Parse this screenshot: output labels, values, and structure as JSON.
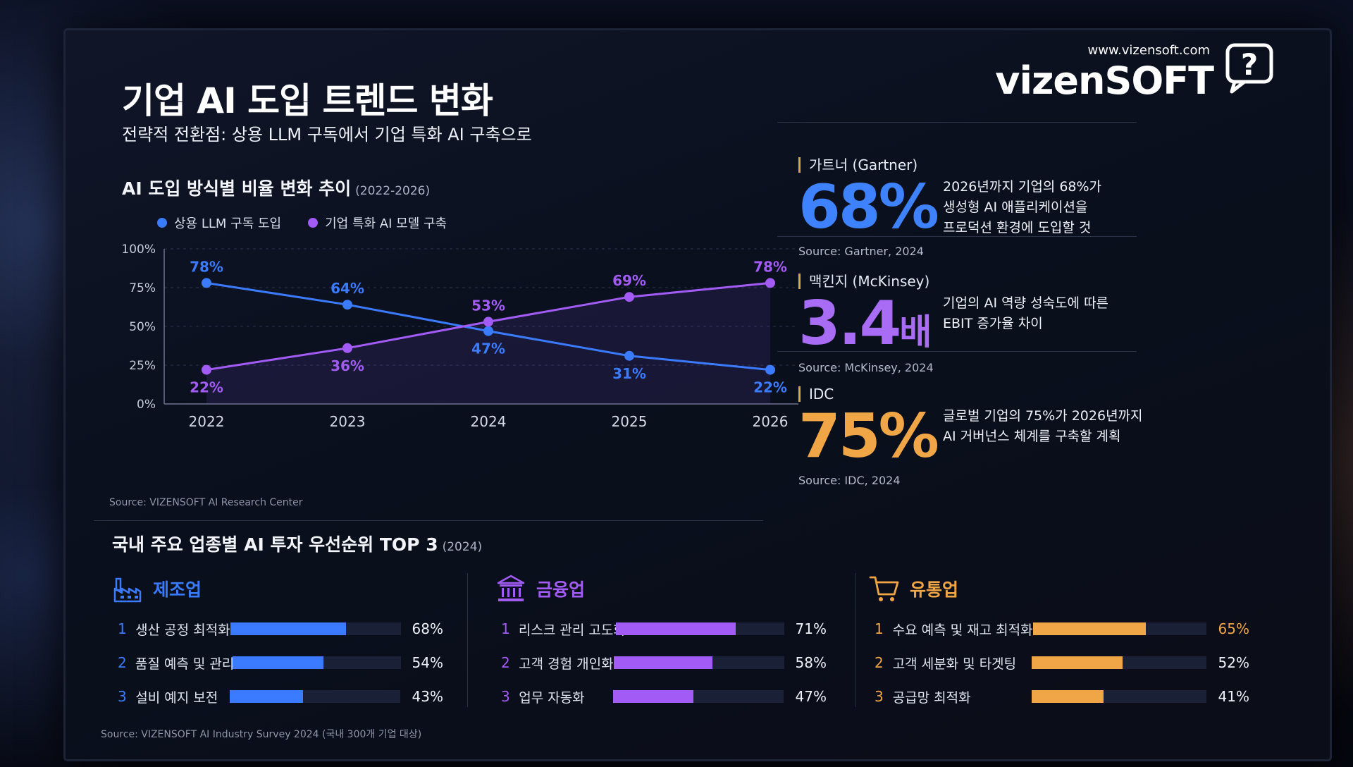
{
  "header": {
    "title": "기업 AI 도입 트렌드 변화",
    "subtitle": "전략적 전환점: 상용 LLM 구독에서 기업 특화 AI 구축으로"
  },
  "brand": {
    "url": "www.vizensoft.com",
    "name": "vizenSOFT"
  },
  "chart_section": {
    "title": "AI 도입 방식별 비율 변화 추이",
    "range": "(2022-2026)",
    "source": "Source: VIZENSOFT AI Research Center"
  },
  "chart_data": {
    "type": "line",
    "x": [
      "2022",
      "2023",
      "2024",
      "2025",
      "2026"
    ],
    "series": [
      {
        "name": "상용 LLM 구독 도입",
        "values": [
          78,
          64,
          47,
          31,
          22
        ],
        "color": "#3b7bff"
      },
      {
        "name": "기업 특화 AI 모델 구축",
        "values": [
          22,
          36,
          53,
          69,
          78
        ],
        "color": "#a25cf5"
      }
    ],
    "data_labels": [
      [
        "78%",
        "64%",
        "47%",
        "31%",
        "22%"
      ],
      [
        "22%",
        "36%",
        "53%",
        "69%",
        "78%"
      ]
    ],
    "y_ticks": [
      "0%",
      "25%",
      "50%",
      "75%",
      "100%"
    ],
    "ylim": [
      0,
      100
    ],
    "grid": true,
    "legend_position": "top-left"
  },
  "stats": [
    {
      "label": "가트너 (Gartner)",
      "value": "68%",
      "unit": "",
      "desc_lines": [
        "2026년까지 기업의 68%가",
        "생성형 AI 애플리케이션을",
        "프로덕션 환경에 도입할 것"
      ],
      "source": "Source: Gartner, 2024",
      "color": "#3f82ff"
    },
    {
      "label": "맥킨지 (McKinsey)",
      "value": "3.4",
      "unit": "배",
      "desc_lines": [
        "기업의 AI 역량 성숙도에 따른",
        "EBIT 증가율 차이"
      ],
      "source": "Source: McKinsey, 2024",
      "color": "#a86cf5"
    },
    {
      "label": "IDC",
      "value": "75%",
      "unit": "",
      "desc_lines": [
        "글로벌 기업의 75%가 2026년까지",
        "AI 거버넌스 체계를 구축할 계획"
      ],
      "source": "Source: IDC, 2024",
      "color": "#f0a646"
    }
  ],
  "industries_section": {
    "title": "국내 주요 업종별 AI 투자 우선순위 TOP 3",
    "year": "(2024)",
    "source": "Source: VIZENSOFT AI Industry Survey 2024 (국내 300개 기업 대상)"
  },
  "industries": [
    {
      "name": "제조업",
      "icon": "factory-icon",
      "color": "#3b7bff",
      "items": [
        {
          "rank": "1",
          "label": "생산 공정 최적화",
          "value": 68,
          "pct": "68%"
        },
        {
          "rank": "2",
          "label": "품질 예측 및 관리",
          "value": 54,
          "pct": "54%"
        },
        {
          "rank": "3",
          "label": "설비 예지 보전",
          "value": 43,
          "pct": "43%"
        }
      ]
    },
    {
      "name": "금융업",
      "icon": "bank-icon",
      "color": "#a25cf5",
      "items": [
        {
          "rank": "1",
          "label": "리스크 관리 고도화",
          "value": 71,
          "pct": "71%"
        },
        {
          "rank": "2",
          "label": "고객 경험 개인화",
          "value": 58,
          "pct": "58%"
        },
        {
          "rank": "3",
          "label": "업무 자동화",
          "value": 47,
          "pct": "47%"
        }
      ]
    },
    {
      "name": "유통업",
      "icon": "cart-icon",
      "color": "#f0a646",
      "items": [
        {
          "rank": "1",
          "label": "수요 예측 및 재고 최적화",
          "value": 65,
          "pct": "65%"
        },
        {
          "rank": "2",
          "label": "고객 세분화 및 타겟팅",
          "value": 52,
          "pct": "52%"
        },
        {
          "rank": "3",
          "label": "공급망 최적화",
          "value": 41,
          "pct": "41%"
        }
      ]
    }
  ]
}
